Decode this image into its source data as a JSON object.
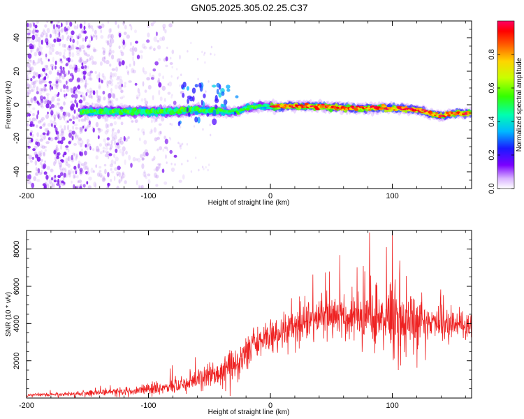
{
  "title": "GN05.2025.305.02.25.C37",
  "colors": {
    "snr_line": "#ee2222",
    "speck": "#8a2be2",
    "frame": "#000000"
  },
  "chart_data": [
    {
      "type": "heatmap",
      "name": "spectrogram",
      "xlabel": "Height of straight line (km)",
      "ylabel": "Frequency (Hz)",
      "xlim": [
        -200,
        165
      ],
      "ylim": [
        -50,
        50
      ],
      "xticks": [
        "-200",
        "-100",
        "0",
        "100"
      ],
      "xtick_values": [
        -200,
        -100,
        0,
        100
      ],
      "yticks": [
        "-40",
        "-20",
        "0",
        "20",
        "40"
      ],
      "ytick_values": [
        -40,
        -20,
        0,
        20,
        40
      ],
      "colorbar": {
        "label": "Normalized spectral amplitude",
        "range": [
          0,
          1
        ],
        "ticks": [
          "0.0",
          "0.2",
          "0.4",
          "0.6",
          "0.8"
        ],
        "tick_values": [
          0.0,
          0.2,
          0.4,
          0.6,
          0.8
        ]
      },
      "ridge": [
        {
          "x": -150,
          "f": -4,
          "amp": 0.45
        },
        {
          "x": -120,
          "f": -4,
          "amp": 0.45
        },
        {
          "x": -100,
          "f": -4,
          "amp": 0.5
        },
        {
          "x": -80,
          "f": -4,
          "amp": 0.5
        },
        {
          "x": -60,
          "f": -3,
          "amp": 0.55
        },
        {
          "x": -40,
          "f": -4,
          "amp": 0.55
        },
        {
          "x": -25,
          "f": -4,
          "amp": 0.6
        },
        {
          "x": -20,
          "f": -2,
          "amp": 0.7
        },
        {
          "x": -10,
          "f": -1,
          "amp": 0.85
        },
        {
          "x": 10,
          "f": -1,
          "amp": 0.9
        },
        {
          "x": 40,
          "f": -1,
          "amp": 0.9
        },
        {
          "x": 60,
          "f": -2,
          "amp": 0.75
        },
        {
          "x": 80,
          "f": -2,
          "amp": 0.6
        },
        {
          "x": 100,
          "f": -2,
          "amp": 0.55
        },
        {
          "x": 120,
          "f": -3,
          "amp": 0.7
        },
        {
          "x": 140,
          "f": -7,
          "amp": 0.6
        },
        {
          "x": 150,
          "f": -5,
          "amp": 0.85
        },
        {
          "x": 165,
          "f": -5,
          "amp": 0.85
        }
      ]
    },
    {
      "type": "line",
      "name": "snr",
      "xlabel": "Height of straight line (km)",
      "ylabel": "SNR (10 * v/v)",
      "xlim": [
        -200,
        165
      ],
      "ylim": [
        0,
        9000
      ],
      "xticks": [
        "-200",
        "-100",
        "0",
        "100"
      ],
      "xtick_values": [
        -200,
        -100,
        0,
        100
      ],
      "yticks": [
        "2000",
        "4000",
        "6000",
        "8000"
      ],
      "ytick_values": [
        2000,
        4000,
        6000,
        8000
      ],
      "envelope": {
        "x": [
          -200,
          -150,
          -100,
          -80,
          -60,
          -40,
          -25,
          -15,
          -5,
          5,
          20,
          40,
          60,
          80,
          100,
          120,
          140,
          165
        ],
        "mean": [
          150,
          250,
          450,
          600,
          900,
          1400,
          1900,
          2900,
          3200,
          3400,
          3800,
          4200,
          4300,
          4400,
          4200,
          4100,
          4000,
          3800
        ],
        "spread": [
          80,
          120,
          250,
          350,
          500,
          700,
          900,
          1000,
          900,
          800,
          900,
          1100,
          1200,
          1400,
          1600,
          1300,
          800,
          600
        ]
      }
    }
  ]
}
